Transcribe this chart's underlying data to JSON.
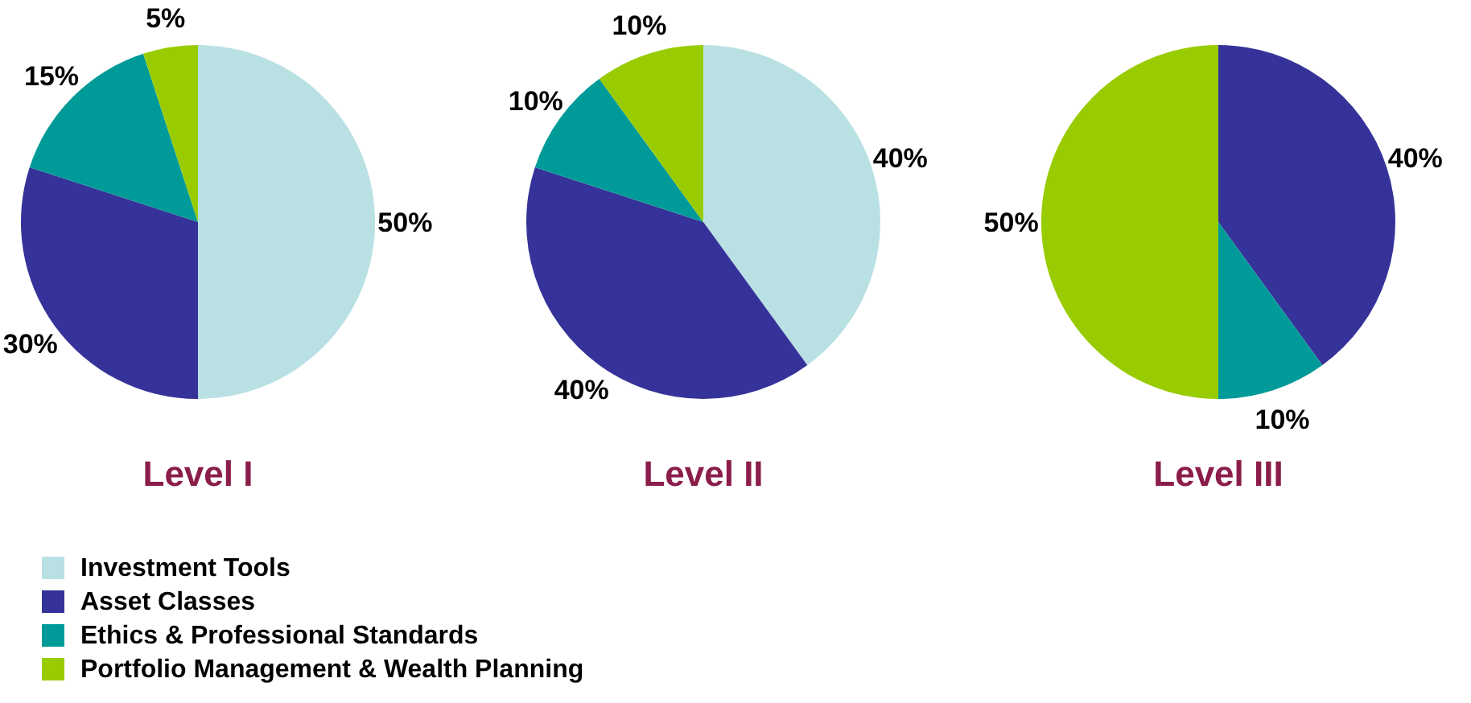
{
  "chart_data": [
    {
      "type": "pie",
      "title": "Level I",
      "categories": [
        "Investment Tools",
        "Asset Classes",
        "Ethics & Professional Standards",
        "Portfolio Management & Wealth Planning"
      ],
      "values": [
        50,
        30,
        15,
        5
      ],
      "value_labels": [
        "50%",
        "30%",
        "15%",
        "5%"
      ],
      "colors": [
        "#b9e1e4",
        "#353399",
        "#009b99",
        "#99cc00"
      ],
      "legend": "bottom"
    },
    {
      "type": "pie",
      "title": "Level II",
      "categories": [
        null,
        null,
        null,
        null
      ],
      "values": [
        40,
        40,
        10,
        10
      ],
      "value_labels": [
        "40%",
        "40%",
        "10%",
        "10%"
      ],
      "colors": [
        "#b9e1e4",
        "#353399",
        "#009b99",
        "#99cc00"
      ]
    },
    {
      "type": "pie",
      "title": "Level III",
      "categories": [
        null,
        null,
        null
      ],
      "values": [
        40,
        10,
        50
      ],
      "value_labels": [
        "40%",
        "10%",
        "50%"
      ],
      "colors": [
        "#353399",
        "#009b99",
        "#99cc00"
      ]
    }
  ]
}
